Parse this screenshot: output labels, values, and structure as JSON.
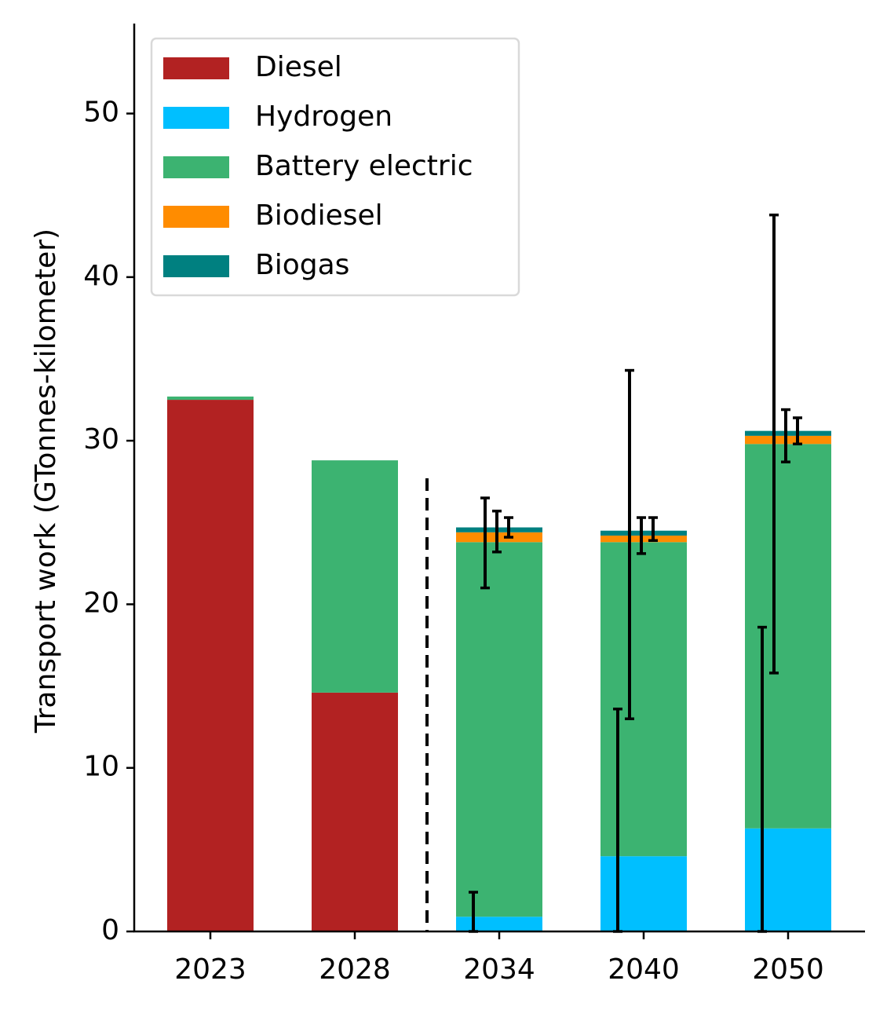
{
  "chart_data": {
    "type": "bar",
    "stacked": true,
    "title": "",
    "xlabel": "",
    "ylabel": "Transport work (GTonnes-kilometer)",
    "ylim": [
      0,
      55.5
    ],
    "yticks": [
      0,
      10,
      20,
      30,
      40,
      50
    ],
    "categories": [
      "2023",
      "2028",
      "2034",
      "2040",
      "2050"
    ],
    "series": [
      {
        "name": "Diesel",
        "color": "#b22222",
        "values": [
          32.5,
          14.6,
          0.0,
          0.0,
          0.0
        ]
      },
      {
        "name": "Hydrogen",
        "color": "#00bfff",
        "values": [
          0.0,
          0.0,
          0.9,
          4.6,
          6.3
        ]
      },
      {
        "name": "Battery electric",
        "color": "#3cb371",
        "values": [
          0.2,
          14.2,
          22.9,
          19.2,
          23.5
        ]
      },
      {
        "name": "Biodiesel",
        "color": "#ff8c00",
        "values": [
          0.0,
          0.0,
          0.6,
          0.4,
          0.5
        ]
      },
      {
        "name": "Biogas",
        "color": "#008080",
        "values": [
          0.0,
          0.0,
          0.3,
          0.3,
          0.3
        ]
      }
    ],
    "error_bars": [
      {
        "category": "2034",
        "series": "Hydrogen",
        "low": 0.0,
        "high": 2.4
      },
      {
        "category": "2034",
        "series": "Battery electric",
        "low": 21.0,
        "high": 26.5
      },
      {
        "category": "2034",
        "series": "Biodiesel",
        "low": 23.2,
        "high": 25.7
      },
      {
        "category": "2034",
        "series": "Biogas",
        "low": 24.1,
        "high": 25.3
      },
      {
        "category": "2040",
        "series": "Hydrogen",
        "low": 0.0,
        "high": 13.6
      },
      {
        "category": "2040",
        "series": "Battery electric",
        "low": 13.0,
        "high": 34.3
      },
      {
        "category": "2040",
        "series": "Biodiesel",
        "low": 23.1,
        "high": 25.3
      },
      {
        "category": "2040",
        "series": "Biogas",
        "low": 23.9,
        "high": 25.3
      },
      {
        "category": "2050",
        "series": "Hydrogen",
        "low": 0.0,
        "high": 18.6
      },
      {
        "category": "2050",
        "series": "Battery electric",
        "low": 15.8,
        "high": 43.8
      },
      {
        "category": "2050",
        "series": "Biodiesel",
        "low": 28.7,
        "high": 31.9
      },
      {
        "category": "2050",
        "series": "Biogas",
        "low": 29.8,
        "high": 31.4
      }
    ],
    "divider": {
      "style": "dashed",
      "between": [
        "2028",
        "2034"
      ],
      "y_top": 27.7
    },
    "legend_position": "top-left"
  }
}
